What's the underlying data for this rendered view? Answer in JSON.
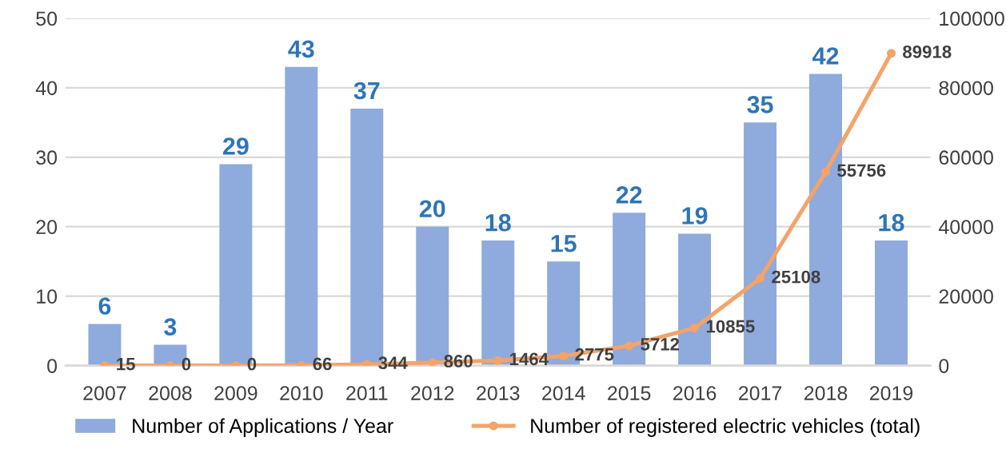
{
  "chart_data": {
    "type": "bar",
    "categories": [
      "2007",
      "2008",
      "2009",
      "2010",
      "2011",
      "2012",
      "2013",
      "2014",
      "2015",
      "2016",
      "2017",
      "2018",
      "2019"
    ],
    "series": [
      {
        "name": "Number of Applications / Year",
        "color": "#8faadc",
        "values": [
          6,
          3,
          29,
          43,
          37,
          20,
          18,
          15,
          22,
          19,
          35,
          42,
          18
        ]
      },
      {
        "name": "Number of registered electric vehicles (total)",
        "type": "line",
        "axis": "y2",
        "color": "#f4a36a",
        "marker": "circle",
        "values": [
          15,
          0,
          0,
          66,
          344,
          860,
          1464,
          2775,
          5712,
          10855,
          25108,
          55756,
          89918
        ]
      }
    ],
    "ylim": [
      0,
      50
    ],
    "yticks": [
      0,
      10,
      20,
      30,
      40,
      50
    ],
    "y2lim": [
      0,
      100000
    ],
    "y2ticks": [
      0,
      20000,
      40000,
      60000,
      80000,
      100000
    ],
    "grid": "y",
    "legend": "bottom",
    "data_labels": true
  }
}
